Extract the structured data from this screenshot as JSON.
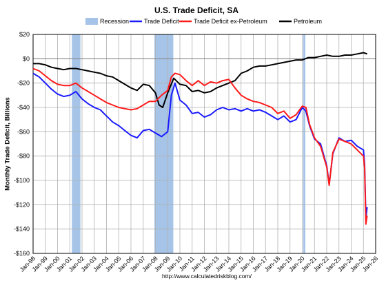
{
  "chart_data": {
    "type": "line",
    "title": "U.S. Trade Deficit, SA",
    "ylabel": "Monthly Trade Deficit, Billions",
    "xlabel": "",
    "source": "http://www.calculatedriskblog.com/",
    "ylim": [
      -160,
      20
    ],
    "yticks": [
      20,
      0,
      -20,
      -40,
      -60,
      -80,
      -100,
      -120,
      -140,
      -160
    ],
    "ytick_labels": [
      "$20",
      "$0",
      "-$20",
      "-$40",
      "-$60",
      "-$80",
      "-$100",
      "-$120",
      "-$140",
      "-$160"
    ],
    "xlim": [
      1998.0,
      2026.0
    ],
    "xticks": [
      1998,
      1999,
      2000,
      2001,
      2002,
      2003,
      2004,
      2005,
      2006,
      2007,
      2008,
      2009,
      2010,
      2011,
      2012,
      2013,
      2014,
      2015,
      2016,
      2017,
      2018,
      2019,
      2020,
      2021,
      2022,
      2023,
      2024,
      2025,
      2026
    ],
    "xtick_labels": [
      "Jan-98",
      "Jan-99",
      "Jan-00",
      "Jan-01",
      "Jan-02",
      "Jan-03",
      "Jan-04",
      "Jan-05",
      "Jan-06",
      "Jan-07",
      "Jan-08",
      "Jan-09",
      "Jan-10",
      "Jan-11",
      "Jan-12",
      "Jan-13",
      "Jan-14",
      "Jan-15",
      "Jan-16",
      "Jan-17",
      "Jan-18",
      "Jan-19",
      "Jan-20",
      "Jan-21",
      "Jan-22",
      "Jan-23",
      "Jan-24",
      "Jan-25",
      "Jan-26"
    ],
    "grid": true,
    "legend_position": "top",
    "recessions": [
      {
        "start": "Mar-01",
        "end": "Nov-01",
        "x": [
          2001.17,
          2001.87
        ]
      },
      {
        "start": "Dec-07",
        "end": "Jun-09",
        "x": [
          2007.92,
          2009.46
        ]
      },
      {
        "start": "Feb-20",
        "end": "Apr-20",
        "x": [
          2020.08,
          2020.25
        ]
      }
    ],
    "legend": [
      {
        "label": "Recession",
        "color": "#a6c4e8",
        "kind": "box"
      },
      {
        "label": "Trade Deficit",
        "color": "#1a1aff",
        "kind": "line"
      },
      {
        "label": "Trade Deficit ex-Petroleum",
        "color": "#ff1a1a",
        "kind": "line"
      },
      {
        "label": "Petroleum",
        "color": "#000000",
        "kind": "line"
      }
    ],
    "series": [
      {
        "name": "Trade Deficit",
        "color": "#1a1aff",
        "x": [
          1998.0,
          1998.5,
          1999.0,
          1999.5,
          2000.0,
          2000.5,
          2001.0,
          2001.5,
          2002.0,
          2002.5,
          2003.0,
          2003.5,
          2004.0,
          2004.5,
          2005.0,
          2005.5,
          2006.0,
          2006.5,
          2007.0,
          2007.5,
          2008.0,
          2008.5,
          2009.0,
          2009.3,
          2009.6,
          2010.0,
          2010.5,
          2011.0,
          2011.5,
          2012.0,
          2012.5,
          2013.0,
          2013.5,
          2014.0,
          2014.5,
          2015.0,
          2015.5,
          2016.0,
          2016.5,
          2017.0,
          2017.5,
          2018.0,
          2018.5,
          2019.0,
          2019.5,
          2020.0,
          2020.3,
          2020.6,
          2021.0,
          2021.5,
          2022.0,
          2022.2,
          2022.5,
          2023.0,
          2023.5,
          2024.0,
          2024.5,
          2025.0,
          2025.1,
          2025.2,
          2025.3
        ],
        "y": [
          -12,
          -15,
          -20,
          -25,
          -29,
          -31,
          -30,
          -27,
          -33,
          -37,
          -40,
          -42,
          -47,
          -52,
          -55,
          -59,
          -63,
          -65,
          -59,
          -58,
          -61,
          -64,
          -60,
          -30,
          -20,
          -34,
          -38,
          -45,
          -44,
          -48,
          -46,
          -42,
          -40,
          -42,
          -41,
          -43,
          -41,
          -43,
          -42,
          -44,
          -47,
          -50,
          -47,
          -52,
          -50,
          -40,
          -43,
          -55,
          -66,
          -70,
          -88,
          -103,
          -78,
          -65,
          -68,
          -67,
          -72,
          -75,
          -87,
          -131,
          -122
        ]
      },
      {
        "name": "Trade Deficit ex-Petroleum",
        "color": "#ff1a1a",
        "x": [
          1998.0,
          1998.5,
          1999.0,
          1999.5,
          2000.0,
          2000.5,
          2001.0,
          2001.5,
          2002.0,
          2002.5,
          2003.0,
          2003.5,
          2004.0,
          2004.5,
          2005.0,
          2005.5,
          2006.0,
          2006.5,
          2007.0,
          2007.5,
          2008.0,
          2008.5,
          2009.0,
          2009.3,
          2009.6,
          2010.0,
          2010.5,
          2011.0,
          2011.5,
          2012.0,
          2012.5,
          2013.0,
          2013.5,
          2014.0,
          2014.5,
          2015.0,
          2015.5,
          2016.0,
          2016.5,
          2017.0,
          2017.5,
          2018.0,
          2018.5,
          2019.0,
          2019.5,
          2020.0,
          2020.3,
          2020.6,
          2021.0,
          2021.5,
          2022.0,
          2022.2,
          2022.5,
          2023.0,
          2023.5,
          2024.0,
          2024.5,
          2025.0,
          2025.1,
          2025.2,
          2025.3
        ],
        "y": [
          -8,
          -10,
          -14,
          -18,
          -21,
          -22,
          -22,
          -20,
          -24,
          -27,
          -30,
          -33,
          -36,
          -38,
          -40,
          -41,
          -42,
          -41,
          -38,
          -35,
          -35,
          -30,
          -26,
          -15,
          -12,
          -13,
          -18,
          -22,
          -18,
          -22,
          -19,
          -20,
          -18,
          -17,
          -24,
          -30,
          -33,
          -35,
          -36,
          -38,
          -40,
          -45,
          -43,
          -49,
          -46,
          -39,
          -40,
          -54,
          -65,
          -72,
          -89,
          -104,
          -77,
          -66,
          -68,
          -70,
          -75,
          -80,
          -90,
          -136,
          -129
        ]
      },
      {
        "name": "Petroleum",
        "color": "#000000",
        "x": [
          1998.0,
          1998.5,
          1999.0,
          1999.5,
          2000.0,
          2000.5,
          2001.0,
          2001.5,
          2002.0,
          2002.5,
          2003.0,
          2003.5,
          2004.0,
          2004.5,
          2005.0,
          2005.5,
          2006.0,
          2006.5,
          2007.0,
          2007.5,
          2008.0,
          2008.3,
          2008.6,
          2009.0,
          2009.5,
          2010.0,
          2010.5,
          2011.0,
          2011.5,
          2012.0,
          2012.5,
          2013.0,
          2013.5,
          2014.0,
          2014.5,
          2015.0,
          2015.5,
          2016.0,
          2016.5,
          2017.0,
          2017.5,
          2018.0,
          2018.5,
          2019.0,
          2019.5,
          2020.0,
          2020.5,
          2021.0,
          2021.5,
          2022.0,
          2022.5,
          2023.0,
          2023.5,
          2024.0,
          2024.5,
          2025.0,
          2025.3
        ],
        "y": [
          -4,
          -4,
          -5,
          -7,
          -8,
          -9,
          -8,
          -8,
          -9,
          -10,
          -11,
          -12,
          -14,
          -15,
          -18,
          -21,
          -24,
          -26,
          -21,
          -22,
          -28,
          -38,
          -40,
          -28,
          -16,
          -21,
          -22,
          -27,
          -26,
          -28,
          -27,
          -24,
          -22,
          -20,
          -18,
          -12,
          -10,
          -7,
          -6,
          -6,
          -5,
          -4,
          -3,
          -2,
          -1,
          -1,
          1,
          1,
          2,
          3,
          2,
          2,
          3,
          3,
          4,
          5,
          4
        ]
      }
    ]
  }
}
